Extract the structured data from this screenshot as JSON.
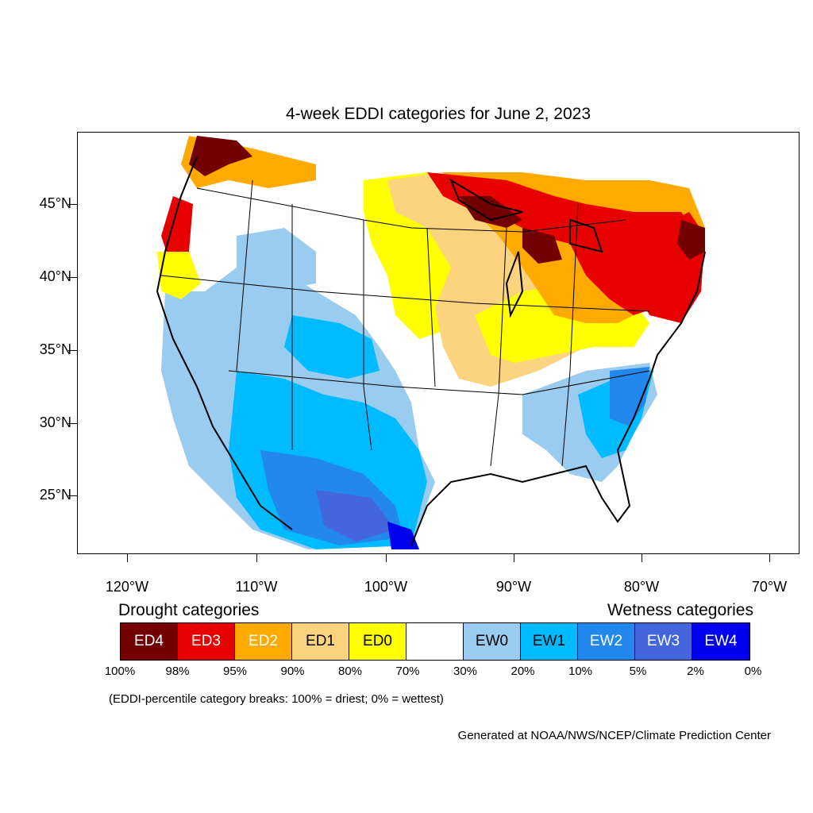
{
  "title": "4-week EDDI categories for June 2, 2023",
  "y_axis_labels": [
    "45°N",
    "40°N",
    "35°N",
    "30°N",
    "25°N"
  ],
  "x_axis_labels": [
    "120°W",
    "110°W",
    "100°W",
    "90°W",
    "80°W",
    "70°W"
  ],
  "legend": {
    "drought_heading": "Drought categories",
    "wetness_heading": "Wetness categories",
    "categories": [
      {
        "label": "ED4",
        "color": "#730000",
        "text_color": "#ffffff"
      },
      {
        "label": "ED3",
        "color": "#e60000",
        "text_color": "#ffffff"
      },
      {
        "label": "ED2",
        "color": "#ffaa00",
        "text_color": "#ffffff"
      },
      {
        "label": "ED1",
        "color": "#fcd37f",
        "text_color": "#000000"
      },
      {
        "label": "ED0",
        "color": "#ffff00",
        "text_color": "#000000"
      },
      {
        "label": "",
        "color": "#ffffff",
        "text_color": "#000000"
      },
      {
        "label": "EW0",
        "color": "#99ccee",
        "text_color": "#000000"
      },
      {
        "label": "EW1",
        "color": "#00bbff",
        "text_color": "#000000"
      },
      {
        "label": "EW2",
        "color": "#2288ee",
        "text_color": "#ffffff"
      },
      {
        "label": "EW3",
        "color": "#4466dd",
        "text_color": "#ffffff"
      },
      {
        "label": "EW4",
        "color": "#0000ee",
        "text_color": "#ffffff"
      }
    ],
    "percent_breaks": [
      "100%",
      "98%",
      "95%",
      "90%",
      "80%",
      "70%",
      "30%",
      "20%",
      "10%",
      "5%",
      "2%",
      "0%"
    ]
  },
  "note": "(EDDI-percentile category breaks: 100% = driest; 0% = wettest)",
  "credit": "Generated at NOAA/NWS/NCEP/Climate Prediction Center"
}
